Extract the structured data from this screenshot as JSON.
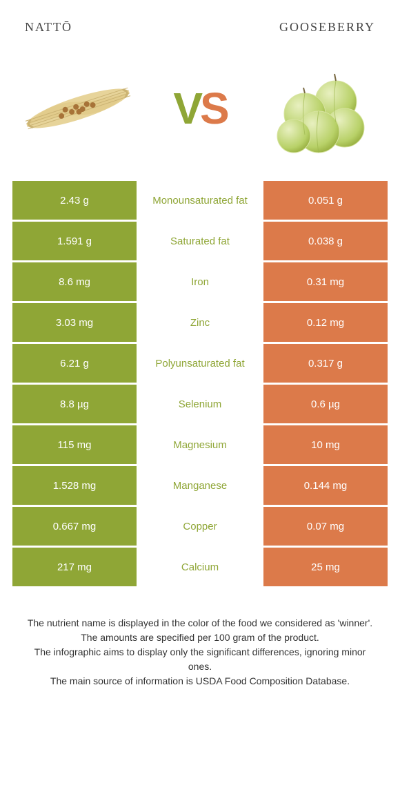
{
  "header": {
    "left_title": "nattō",
    "right_title": "gooseberry"
  },
  "vs": {
    "v": "V",
    "s": "S"
  },
  "colors": {
    "left": "#8fa636",
    "right": "#dc7a4a",
    "label_left_win": "#8fa636",
    "label_right_win": "#dc7a4a",
    "row_bg": "#ffffff"
  },
  "table": {
    "type": "comparison-table",
    "rows": [
      {
        "left": "2.43 g",
        "label": "Monounsaturated fat",
        "right": "0.051 g",
        "winner": "left"
      },
      {
        "left": "1.591 g",
        "label": "Saturated fat",
        "right": "0.038 g",
        "winner": "left"
      },
      {
        "left": "8.6 mg",
        "label": "Iron",
        "right": "0.31 mg",
        "winner": "left"
      },
      {
        "left": "3.03 mg",
        "label": "Zinc",
        "right": "0.12 mg",
        "winner": "left"
      },
      {
        "left": "6.21 g",
        "label": "Polyunsaturated fat",
        "right": "0.317 g",
        "winner": "left"
      },
      {
        "left": "8.8 µg",
        "label": "Selenium",
        "right": "0.6 µg",
        "winner": "left"
      },
      {
        "left": "115 mg",
        "label": "Magnesium",
        "right": "10 mg",
        "winner": "left"
      },
      {
        "left": "1.528 mg",
        "label": "Manganese",
        "right": "0.144 mg",
        "winner": "left"
      },
      {
        "left": "0.667 mg",
        "label": "Copper",
        "right": "0.07 mg",
        "winner": "left"
      },
      {
        "left": "217 mg",
        "label": "Calcium",
        "right": "25 mg",
        "winner": "left"
      }
    ]
  },
  "footer": {
    "line1": "The nutrient name is displayed in the color of the food we considered as 'winner'.",
    "line2": "The amounts are specified per 100 gram of the product.",
    "line3": "The infographic aims to display only the significant differences, ignoring minor ones.",
    "line4": "The main source of information is USDA Food Composition Database."
  }
}
